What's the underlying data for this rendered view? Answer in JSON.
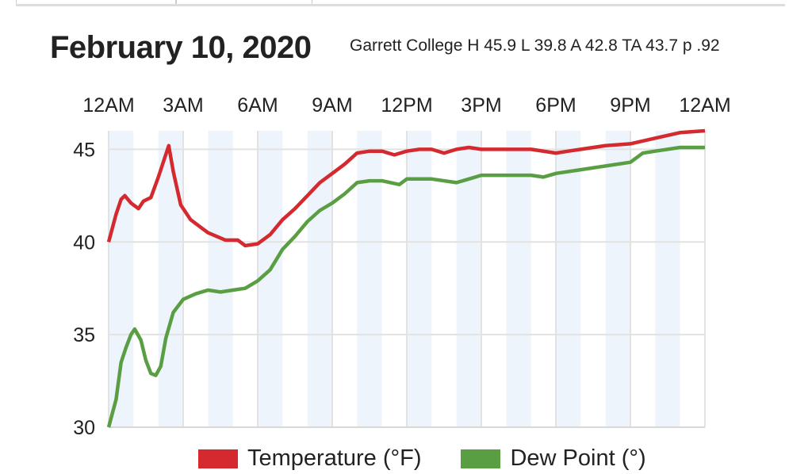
{
  "header": {
    "title": "February 10, 2020",
    "summary": "Garrett College H 45.9 L 39.8 A 42.8 TA 43.7 p .92"
  },
  "chart_data": {
    "type": "line",
    "title": "February 10, 2020",
    "xlabel": "",
    "ylabel": "",
    "xlim": [
      0,
      24
    ],
    "ylim": [
      30,
      46
    ],
    "x_ticks": [
      {
        "h": 0,
        "label": "12AM"
      },
      {
        "h": 3,
        "label": "3AM"
      },
      {
        "h": 6,
        "label": "6AM"
      },
      {
        "h": 9,
        "label": "9AM"
      },
      {
        "h": 12,
        "label": "12PM"
      },
      {
        "h": 15,
        "label": "3PM"
      },
      {
        "h": 18,
        "label": "6PM"
      },
      {
        "h": 21,
        "label": "9PM"
      },
      {
        "h": 24,
        "label": "12AM"
      }
    ],
    "y_ticks": [
      30,
      35,
      40,
      45
    ],
    "grid": true,
    "legend_position": "bottom",
    "series": [
      {
        "name": "Temperature (°F)",
        "color": "#d42a2f",
        "points": [
          [
            0,
            40.0
          ],
          [
            0.3,
            41.5
          ],
          [
            0.5,
            42.3
          ],
          [
            0.65,
            42.5
          ],
          [
            0.9,
            42.1
          ],
          [
            1.2,
            41.8
          ],
          [
            1.4,
            42.2
          ],
          [
            1.7,
            42.4
          ],
          [
            2.0,
            43.5
          ],
          [
            2.42,
            45.2
          ],
          [
            2.6,
            43.8
          ],
          [
            2.9,
            42.0
          ],
          [
            3.3,
            41.2
          ],
          [
            4,
            40.5
          ],
          [
            4.7,
            40.1
          ],
          [
            5.2,
            40.1
          ],
          [
            5.5,
            39.8
          ],
          [
            6,
            39.9
          ],
          [
            6.5,
            40.4
          ],
          [
            7,
            41.2
          ],
          [
            7.5,
            41.8
          ],
          [
            8,
            42.5
          ],
          [
            8.5,
            43.2
          ],
          [
            9,
            43.7
          ],
          [
            9.5,
            44.2
          ],
          [
            10,
            44.8
          ],
          [
            10.5,
            44.9
          ],
          [
            11,
            44.9
          ],
          [
            11.5,
            44.7
          ],
          [
            12,
            44.9
          ],
          [
            12.5,
            45.0
          ],
          [
            13,
            45.0
          ],
          [
            13.5,
            44.8
          ],
          [
            14,
            45.0
          ],
          [
            14.5,
            45.1
          ],
          [
            15,
            45.0
          ],
          [
            16,
            45.0
          ],
          [
            17,
            45.0
          ],
          [
            18,
            44.8
          ],
          [
            18.5,
            44.9
          ],
          [
            19,
            45.0
          ],
          [
            20,
            45.2
          ],
          [
            21,
            45.3
          ],
          [
            22,
            45.6
          ],
          [
            23,
            45.9
          ],
          [
            24,
            46.0
          ]
        ]
      },
      {
        "name": "Dew Point (°)",
        "color": "#5a9e44",
        "points": [
          [
            0,
            30.0
          ],
          [
            0.3,
            31.5
          ],
          [
            0.5,
            33.5
          ],
          [
            0.7,
            34.3
          ],
          [
            0.9,
            35.0
          ],
          [
            1.05,
            35.3
          ],
          [
            1.3,
            34.7
          ],
          [
            1.5,
            33.6
          ],
          [
            1.7,
            32.9
          ],
          [
            1.9,
            32.8
          ],
          [
            2.1,
            33.3
          ],
          [
            2.3,
            34.8
          ],
          [
            2.6,
            36.2
          ],
          [
            3.0,
            36.9
          ],
          [
            3.5,
            37.2
          ],
          [
            4,
            37.4
          ],
          [
            4.5,
            37.3
          ],
          [
            5,
            37.4
          ],
          [
            5.5,
            37.5
          ],
          [
            6,
            37.9
          ],
          [
            6.5,
            38.5
          ],
          [
            7,
            39.6
          ],
          [
            7.5,
            40.3
          ],
          [
            8,
            41.1
          ],
          [
            8.5,
            41.7
          ],
          [
            9,
            42.1
          ],
          [
            9.5,
            42.6
          ],
          [
            10,
            43.2
          ],
          [
            10.5,
            43.3
          ],
          [
            11,
            43.3
          ],
          [
            11.7,
            43.1
          ],
          [
            12,
            43.4
          ],
          [
            13,
            43.4
          ],
          [
            14,
            43.2
          ],
          [
            14.5,
            43.4
          ],
          [
            15,
            43.6
          ],
          [
            16,
            43.6
          ],
          [
            17,
            43.6
          ],
          [
            17.5,
            43.5
          ],
          [
            18,
            43.7
          ],
          [
            19,
            43.9
          ],
          [
            20,
            44.1
          ],
          [
            21,
            44.3
          ],
          [
            21.5,
            44.8
          ],
          [
            22,
            44.9
          ],
          [
            23,
            45.1
          ],
          [
            24,
            45.1
          ]
        ]
      }
    ]
  }
}
